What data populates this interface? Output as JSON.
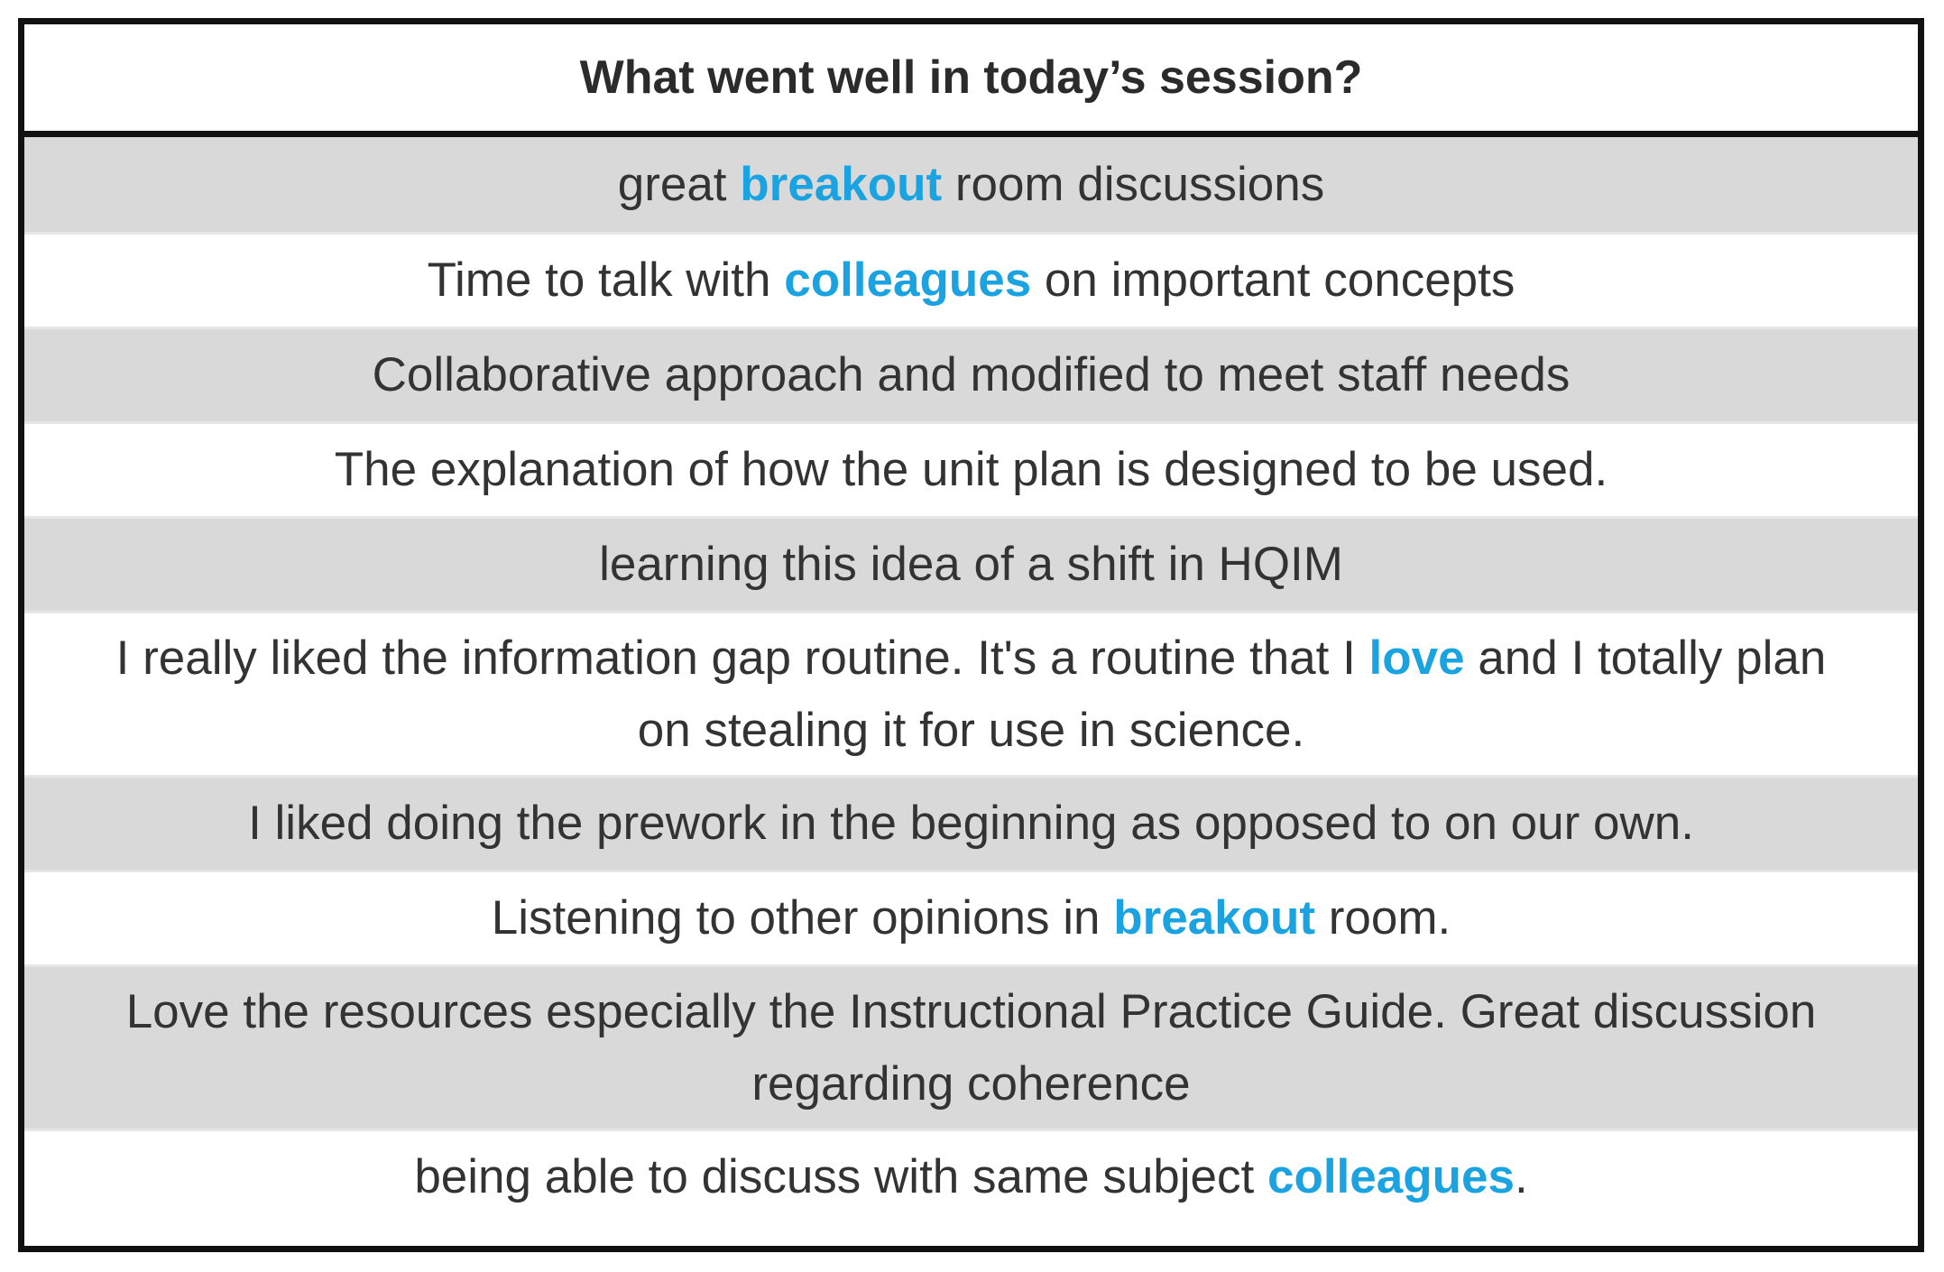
{
  "title": "What went well in today’s session?",
  "colors": {
    "highlight": "#1aa3e0",
    "row_alt": "#d9d9d9",
    "border": "#111111"
  },
  "rows": [
    {
      "pre": "great ",
      "hl": "breakout",
      "post": " room discussions"
    },
    {
      "pre": "Time to talk with ",
      "hl": "colleagues",
      "post": " on important concepts"
    },
    {
      "pre": "Collaborative approach and modified to meet staff needs",
      "hl": "",
      "post": ""
    },
    {
      "pre": "The explanation of how the unit plan is designed to be used.",
      "hl": "",
      "post": ""
    },
    {
      "pre": "learning this idea of a shift in HQIM",
      "hl": "",
      "post": ""
    },
    {
      "pre": "I really liked the information gap routine. It's a routine that I ",
      "hl": "love",
      "post": " and I totally plan on stealing it for use in science."
    },
    {
      "pre": "I liked doing the prework in the beginning as opposed to on our own.",
      "hl": "",
      "post": ""
    },
    {
      "pre": "Listening to other opinions in ",
      "hl": "breakout",
      "post": " room."
    },
    {
      "pre": "Love the resources especially the Instructional Practice Guide. Great discussion regarding coherence",
      "hl": "",
      "post": ""
    },
    {
      "pre": "being able to discuss with same subject ",
      "hl": "colleagues",
      "post": "."
    }
  ]
}
